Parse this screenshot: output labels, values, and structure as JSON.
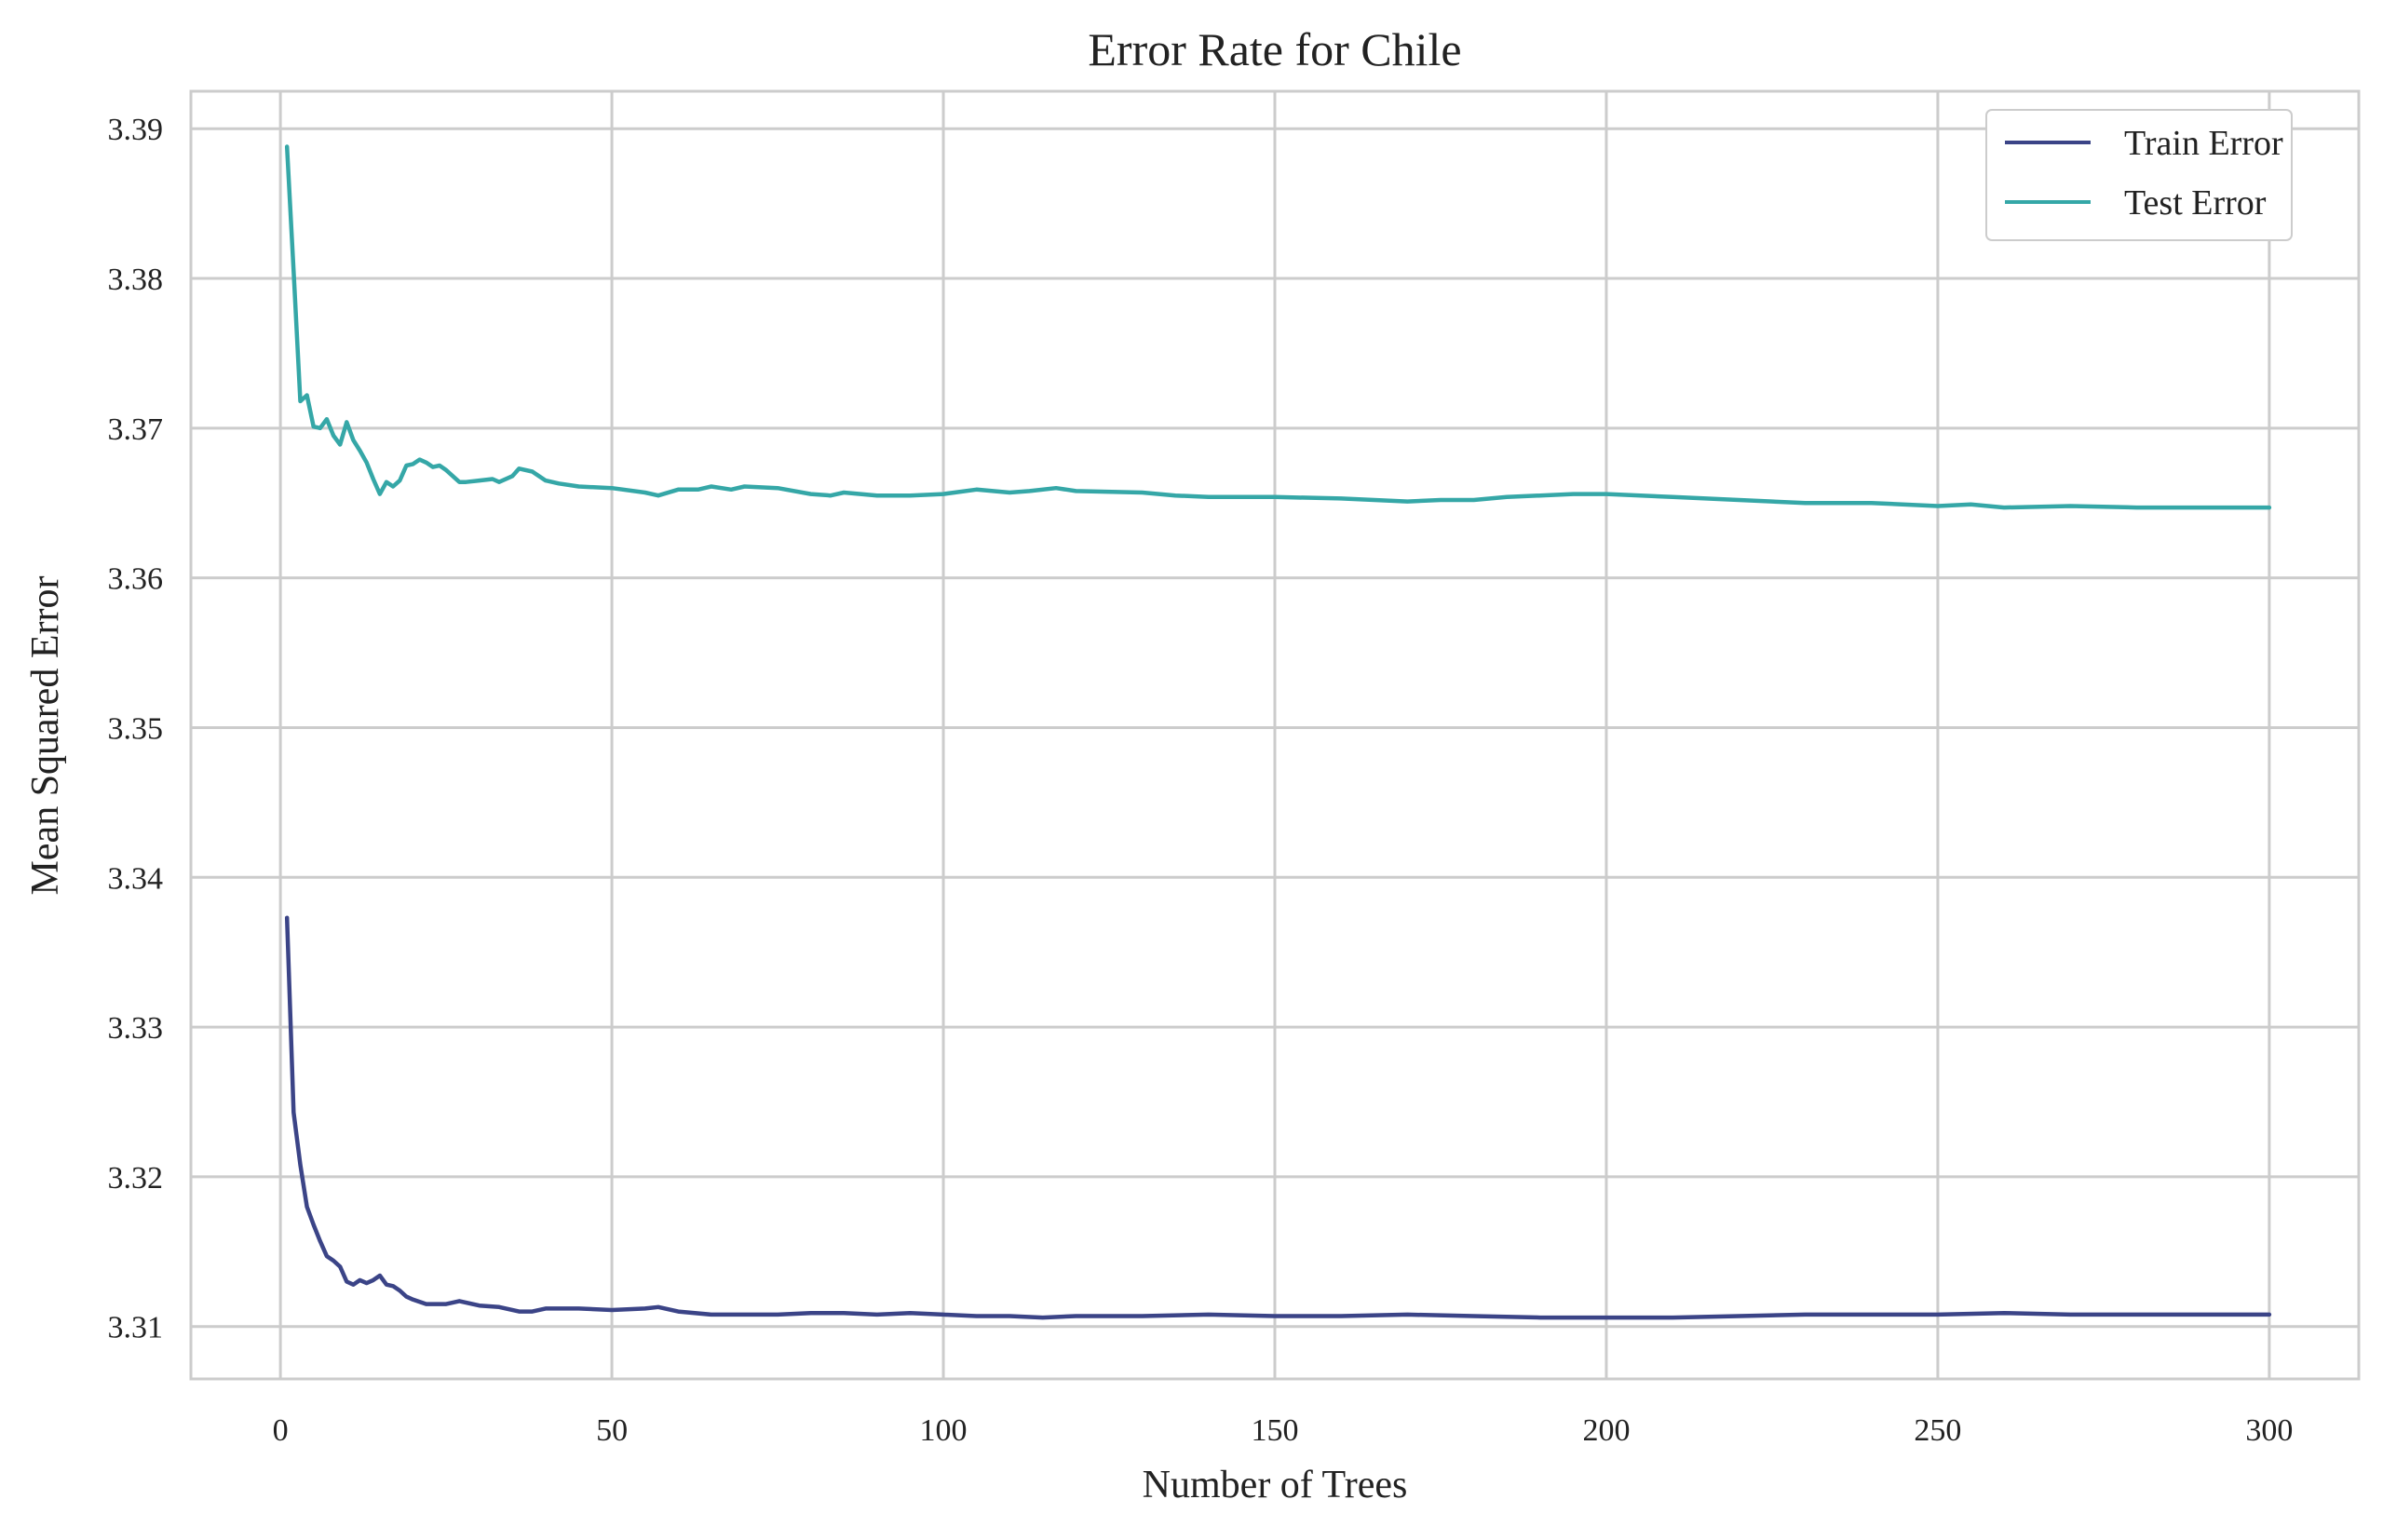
{
  "chart_data": {
    "type": "line",
    "title": "Error Rate for Chile",
    "xlabel": "Number of Trees",
    "ylabel": "Mean Squared Error",
    "xlim": [
      -13.5,
      313.5
    ],
    "ylim": [
      3.3065,
      3.3925
    ],
    "x_ticks": [
      0,
      50,
      100,
      150,
      200,
      250,
      300
    ],
    "y_ticks": [
      3.31,
      3.32,
      3.33,
      3.34,
      3.35,
      3.36,
      3.37,
      3.38,
      3.39
    ],
    "x_tick_labels": [
      "0",
      "50",
      "100",
      "150",
      "200",
      "250",
      "300"
    ],
    "y_tick_labels": [
      "3.31",
      "3.32",
      "3.33",
      "3.34",
      "3.35",
      "3.36",
      "3.37",
      "3.38",
      "3.39"
    ],
    "grid": true,
    "legend_position": "top-right",
    "series": [
      {
        "name": "Train Error",
        "color": "#3b4487",
        "points": [
          [
            1,
            3.3373
          ],
          [
            2,
            3.3243
          ],
          [
            3,
            3.3208
          ],
          [
            4,
            3.318
          ],
          [
            5,
            3.3168
          ],
          [
            6,
            3.3157
          ],
          [
            7,
            3.3147
          ],
          [
            8,
            3.3144
          ],
          [
            9,
            3.314
          ],
          [
            10,
            3.313
          ],
          [
            11,
            3.3128
          ],
          [
            12,
            3.3131
          ],
          [
            13,
            3.3129
          ],
          [
            14,
            3.3131
          ],
          [
            15,
            3.3134
          ],
          [
            16,
            3.3128
          ],
          [
            17,
            3.3127
          ],
          [
            18,
            3.3124
          ],
          [
            19,
            3.312
          ],
          [
            20,
            3.3118
          ],
          [
            22,
            3.3115
          ],
          [
            25,
            3.3115
          ],
          [
            27,
            3.3117
          ],
          [
            30,
            3.3114
          ],
          [
            33,
            3.3113
          ],
          [
            36,
            3.311
          ],
          [
            38,
            3.311
          ],
          [
            40,
            3.3112
          ],
          [
            45,
            3.3112
          ],
          [
            50,
            3.3111
          ],
          [
            55,
            3.3112
          ],
          [
            57,
            3.3113
          ],
          [
            60,
            3.311
          ],
          [
            65,
            3.3108
          ],
          [
            70,
            3.3108
          ],
          [
            75,
            3.3108
          ],
          [
            80,
            3.3109
          ],
          [
            85,
            3.3109
          ],
          [
            90,
            3.3108
          ],
          [
            95,
            3.3109
          ],
          [
            100,
            3.3108
          ],
          [
            105,
            3.3107
          ],
          [
            110,
            3.3107
          ],
          [
            115,
            3.3106
          ],
          [
            120,
            3.3107
          ],
          [
            130,
            3.3107
          ],
          [
            140,
            3.3108
          ],
          [
            150,
            3.3107
          ],
          [
            160,
            3.3107
          ],
          [
            170,
            3.3108
          ],
          [
            180,
            3.3107
          ],
          [
            190,
            3.3106
          ],
          [
            200,
            3.3106
          ],
          [
            210,
            3.3106
          ],
          [
            220,
            3.3107
          ],
          [
            230,
            3.3108
          ],
          [
            240,
            3.3108
          ],
          [
            250,
            3.3108
          ],
          [
            260,
            3.3109
          ],
          [
            270,
            3.3108
          ],
          [
            280,
            3.3108
          ],
          [
            290,
            3.3108
          ],
          [
            300,
            3.3108
          ]
        ]
      },
      {
        "name": "Test Error",
        "color": "#35a7a7",
        "points": [
          [
            1,
            3.3888
          ],
          [
            2,
            3.3805
          ],
          [
            3,
            3.3718
          ],
          [
            4,
            3.3722
          ],
          [
            5,
            3.3701
          ],
          [
            6,
            3.37
          ],
          [
            7,
            3.3706
          ],
          [
            8,
            3.3695
          ],
          [
            9,
            3.3689
          ],
          [
            10,
            3.3704
          ],
          [
            11,
            3.3692
          ],
          [
            12,
            3.3685
          ],
          [
            13,
            3.3677
          ],
          [
            14,
            3.3666
          ],
          [
            15,
            3.3656
          ],
          [
            16,
            3.3664
          ],
          [
            17,
            3.3661
          ],
          [
            18,
            3.3665
          ],
          [
            19,
            3.3675
          ],
          [
            20,
            3.3676
          ],
          [
            21,
            3.3679
          ],
          [
            22,
            3.3677
          ],
          [
            23,
            3.3674
          ],
          [
            24,
            3.3675
          ],
          [
            25,
            3.3672
          ],
          [
            26,
            3.3668
          ],
          [
            27,
            3.3664
          ],
          [
            28,
            3.3664
          ],
          [
            30,
            3.3665
          ],
          [
            32,
            3.3666
          ],
          [
            33,
            3.3664
          ],
          [
            35,
            3.3668
          ],
          [
            36,
            3.3673
          ],
          [
            38,
            3.3671
          ],
          [
            40,
            3.3665
          ],
          [
            42,
            3.3663
          ],
          [
            45,
            3.3661
          ],
          [
            50,
            3.366
          ],
          [
            55,
            3.3657
          ],
          [
            57,
            3.3655
          ],
          [
            60,
            3.3659
          ],
          [
            63,
            3.3659
          ],
          [
            65,
            3.3661
          ],
          [
            68,
            3.3659
          ],
          [
            70,
            3.3661
          ],
          [
            75,
            3.366
          ],
          [
            80,
            3.3656
          ],
          [
            83,
            3.3655
          ],
          [
            85,
            3.3657
          ],
          [
            90,
            3.3655
          ],
          [
            95,
            3.3655
          ],
          [
            100,
            3.3656
          ],
          [
            105,
            3.3659
          ],
          [
            110,
            3.3657
          ],
          [
            113,
            3.3658
          ],
          [
            117,
            3.366
          ],
          [
            120,
            3.3658
          ],
          [
            130,
            3.3657
          ],
          [
            135,
            3.3655
          ],
          [
            140,
            3.3654
          ],
          [
            145,
            3.3654
          ],
          [
            150,
            3.3654
          ],
          [
            160,
            3.3653
          ],
          [
            165,
            3.3652
          ],
          [
            170,
            3.3651
          ],
          [
            175,
            3.3652
          ],
          [
            180,
            3.3652
          ],
          [
            185,
            3.3654
          ],
          [
            190,
            3.3655
          ],
          [
            195,
            3.3656
          ],
          [
            200,
            3.3656
          ],
          [
            210,
            3.3654
          ],
          [
            220,
            3.3652
          ],
          [
            230,
            3.365
          ],
          [
            240,
            3.365
          ],
          [
            250,
            3.3648
          ],
          [
            255,
            3.3649
          ],
          [
            260,
            3.3647
          ],
          [
            270,
            3.3648
          ],
          [
            280,
            3.3647
          ],
          [
            290,
            3.3647
          ],
          [
            300,
            3.3647
          ]
        ]
      }
    ]
  }
}
